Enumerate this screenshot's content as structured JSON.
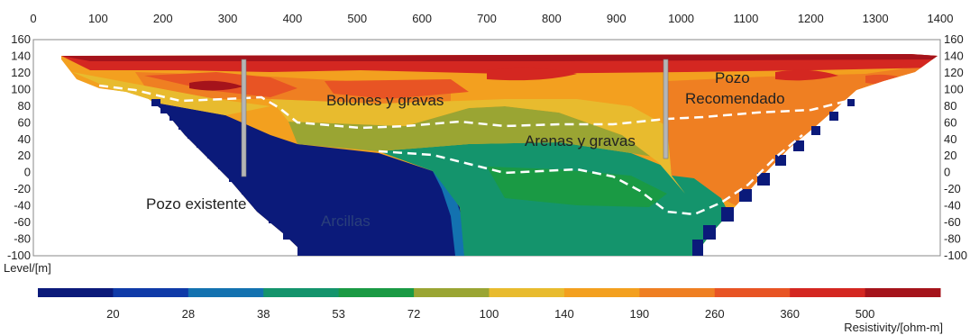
{
  "chart_data": {
    "type": "heatmap",
    "x_ticks": [
      0,
      100,
      200,
      300,
      400,
      500,
      600,
      700,
      800,
      900,
      1000,
      1100,
      1200,
      1300,
      1400
    ],
    "xlim": [
      0,
      1400
    ],
    "y_ticks_left": [
      "160",
      "140",
      "120",
      "100",
      "80",
      "60",
      "40",
      "20",
      "0",
      "-20",
      "-40",
      "-60",
      "-80",
      "-100"
    ],
    "y_ticks_right": [
      "160",
      "140",
      "120",
      "100",
      "80",
      "60",
      "40",
      "20",
      "0",
      "-20",
      "-40",
      "-60",
      "-80",
      "-100"
    ],
    "ylim": [
      -100,
      160
    ],
    "ylabel": "Level/[m]",
    "colorbar": {
      "title": "Resistivity/[ohm-m]",
      "tick_labels": [
        "20",
        "28",
        "38",
        "53",
        "72",
        "100",
        "140",
        "190",
        "260",
        "360",
        "500"
      ],
      "colors": [
        "#0b1a7a",
        "#0f3aa8",
        "#1372b0",
        "#14946c",
        "#1a9a44",
        "#9aa533",
        "#e8bb2e",
        "#f3a01f",
        "#ef7f22",
        "#e85424",
        "#d42721",
        "#a5131b"
      ]
    },
    "annotations": {
      "bolones": "Bolones y gravas",
      "arenas": "Arenas y gravas",
      "arcillas": "Arcillas",
      "pozo_existente": "Pozo existente",
      "pozo_recomendado_1": "Pozo",
      "pozo_recomendado_2": "Recomendado"
    },
    "wells": [
      {
        "name": "Pozo existente",
        "x": 320,
        "top": 133,
        "bottom": -5
      },
      {
        "name": "Pozo Recomendado",
        "x": 970,
        "top": 133,
        "bottom": 15
      }
    ]
  }
}
